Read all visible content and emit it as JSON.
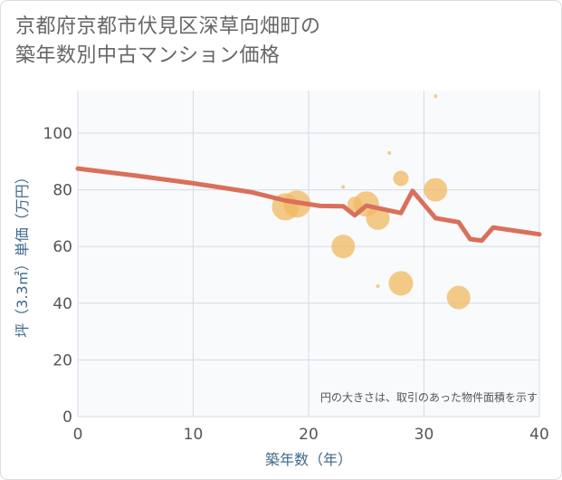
{
  "title_line1": "京都府京都市伏見区深草向畑町の",
  "title_line2": "築年数別中古マンション価格",
  "chart_data": {
    "type": "scatter",
    "xlabel": "築年数（年）",
    "ylabel": "坪（3.3㎡）単価（万円）",
    "xlim": [
      0,
      40
    ],
    "ylim": [
      0,
      115
    ],
    "xticks": [
      0,
      10,
      20,
      30,
      40
    ],
    "yticks": [
      0,
      20,
      40,
      60,
      80,
      100
    ],
    "grid": true,
    "note": "円の大きさは、取引のあった物件面積を示す",
    "colors": {
      "line": "#d9705a",
      "bubble": "#f2b861",
      "plot_bg": "#f8fafc",
      "grid": "#d3dce8"
    },
    "bubbles": [
      {
        "x": 18,
        "y": 74,
        "size": 3
      },
      {
        "x": 19,
        "y": 75,
        "size": 3
      },
      {
        "x": 23,
        "y": 81,
        "size": 0.4
      },
      {
        "x": 23,
        "y": 60,
        "size": 2.6
      },
      {
        "x": 24,
        "y": 75,
        "size": 1.6
      },
      {
        "x": 25,
        "y": 75,
        "size": 2.8
      },
      {
        "x": 26,
        "y": 70,
        "size": 2.6
      },
      {
        "x": 26,
        "y": 46,
        "size": 0.4
      },
      {
        "x": 27,
        "y": 93,
        "size": 0.4
      },
      {
        "x": 28,
        "y": 84,
        "size": 1.7
      },
      {
        "x": 28,
        "y": 47,
        "size": 2.7
      },
      {
        "x": 31,
        "y": 113,
        "size": 0.4
      },
      {
        "x": 31,
        "y": 80,
        "size": 2.6
      },
      {
        "x": 33,
        "y": 42,
        "size": 2.6
      }
    ],
    "trend": [
      {
        "x": 0,
        "y": 87.5
      },
      {
        "x": 5,
        "y": 85
      },
      {
        "x": 10,
        "y": 82.3
      },
      {
        "x": 15,
        "y": 79.2
      },
      {
        "x": 18,
        "y": 76.2
      },
      {
        "x": 21,
        "y": 74.3
      },
      {
        "x": 23,
        "y": 74.2
      },
      {
        "x": 24,
        "y": 71
      },
      {
        "x": 25,
        "y": 74.4
      },
      {
        "x": 28,
        "y": 71.8
      },
      {
        "x": 29,
        "y": 79.6
      },
      {
        "x": 31,
        "y": 70
      },
      {
        "x": 33,
        "y": 68.6
      },
      {
        "x": 34,
        "y": 62.6
      },
      {
        "x": 35,
        "y": 62.1
      },
      {
        "x": 36,
        "y": 66.7
      },
      {
        "x": 40,
        "y": 64.3
      }
    ]
  }
}
